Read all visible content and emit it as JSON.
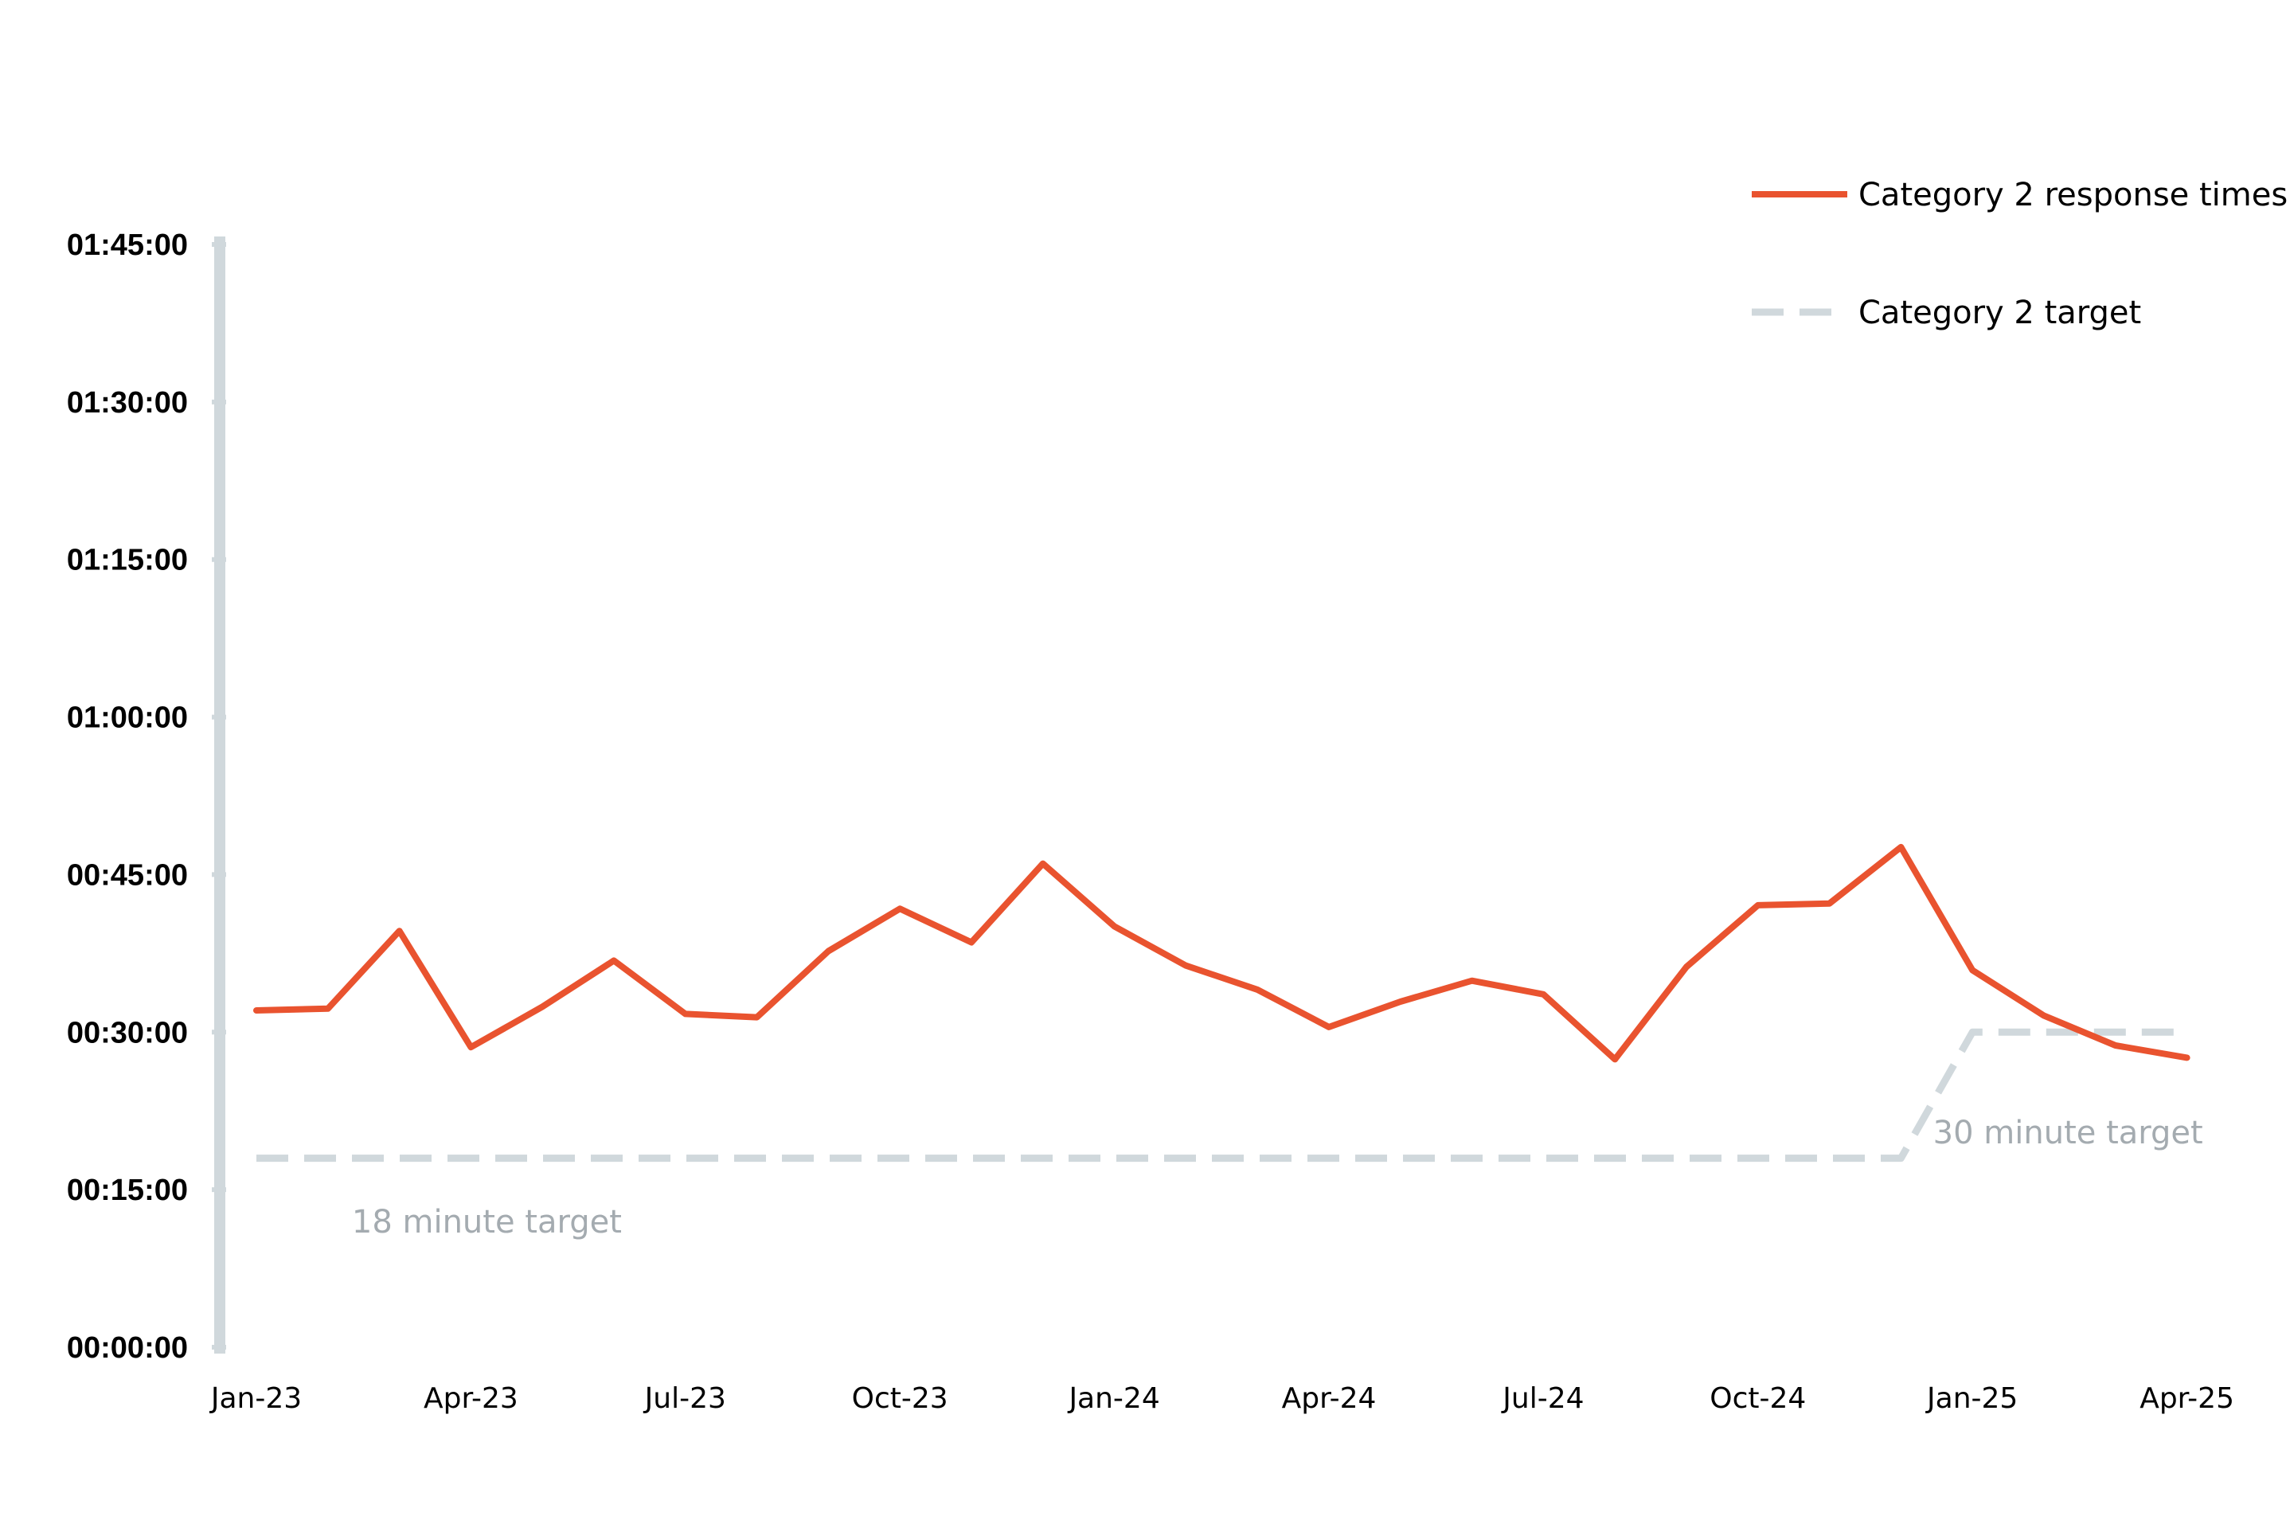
{
  "chart_data": {
    "type": "line",
    "title": "",
    "xlabel": "",
    "ylabel": "",
    "ylim_seconds": [
      0,
      6300
    ],
    "y_ticks": [
      "00:00:00",
      "00:15:00",
      "00:30:00",
      "00:45:00",
      "01:00:00",
      "01:15:00",
      "01:30:00",
      "01:45:00"
    ],
    "x_tick_labels": [
      "Jan-23",
      "Apr-23",
      "Jul-23",
      "Oct-23",
      "Jan-24",
      "Apr-24",
      "Jul-24",
      "Oct-24",
      "Jan-25",
      "Apr-25"
    ],
    "x": [
      "Jan-23",
      "Feb-23",
      "Mar-23",
      "Apr-23",
      "May-23",
      "Jun-23",
      "Jul-23",
      "Aug-23",
      "Sep-23",
      "Oct-23",
      "Nov-23",
      "Dec-23",
      "Jan-24",
      "Feb-24",
      "Mar-24",
      "Apr-24",
      "May-24",
      "Jun-24",
      "Jul-24",
      "Aug-24",
      "Sep-24",
      "Oct-24",
      "Nov-24",
      "Dec-24",
      "Jan-25",
      "Feb-25",
      "Mar-25",
      "Apr-25"
    ],
    "series": [
      {
        "name": "Category 2 response times",
        "color": "#e9532f",
        "style": "solid",
        "values": [
          "00:32:04",
          "00:32:14",
          "00:39:38",
          "00:28:34",
          "00:32:25",
          "00:36:49",
          "00:31:44",
          "00:31:25",
          "00:37:43",
          "00:41:45",
          "00:38:33",
          "00:46:03",
          "00:40:04",
          "00:36:20",
          "00:34:03",
          "00:30:29",
          "00:32:54",
          "00:34:54",
          "00:33:36",
          "00:27:25",
          "00:36:13",
          "00:42:05",
          "00:42:15",
          "00:47:37",
          "00:35:54",
          "00:31:34",
          "00:28:44",
          "00:27:34"
        ]
      },
      {
        "name": "Category 2 target",
        "color": "#d0d8dc",
        "style": "dashed",
        "values": [
          "00:18:00",
          "00:18:00",
          "00:18:00",
          "00:18:00",
          "00:18:00",
          "00:18:00",
          "00:18:00",
          "00:18:00",
          "00:18:00",
          "00:18:00",
          "00:18:00",
          "00:18:00",
          "00:18:00",
          "00:18:00",
          "00:18:00",
          "00:18:00",
          "00:18:00",
          "00:18:00",
          "00:18:00",
          "00:18:00",
          "00:18:00",
          "00:18:00",
          "00:18:00",
          "00:18:00",
          "00:30:00",
          "00:30:00",
          "00:30:00",
          "00:30:00"
        ]
      }
    ],
    "annotations": [
      {
        "text": "18 minute target",
        "anchor_month": "Apr-23"
      },
      {
        "text": "30 minute target",
        "anchor_month": "Jan-25"
      }
    ],
    "legend": {
      "position": "top-right",
      "items": [
        {
          "label": "Category 2 response times",
          "color": "#e9532f",
          "style": "solid"
        },
        {
          "label": "Category 2 target",
          "color": "#d0d8dc",
          "style": "dashed"
        }
      ]
    },
    "grid": false,
    "axis_color": "#d0d8dc"
  }
}
